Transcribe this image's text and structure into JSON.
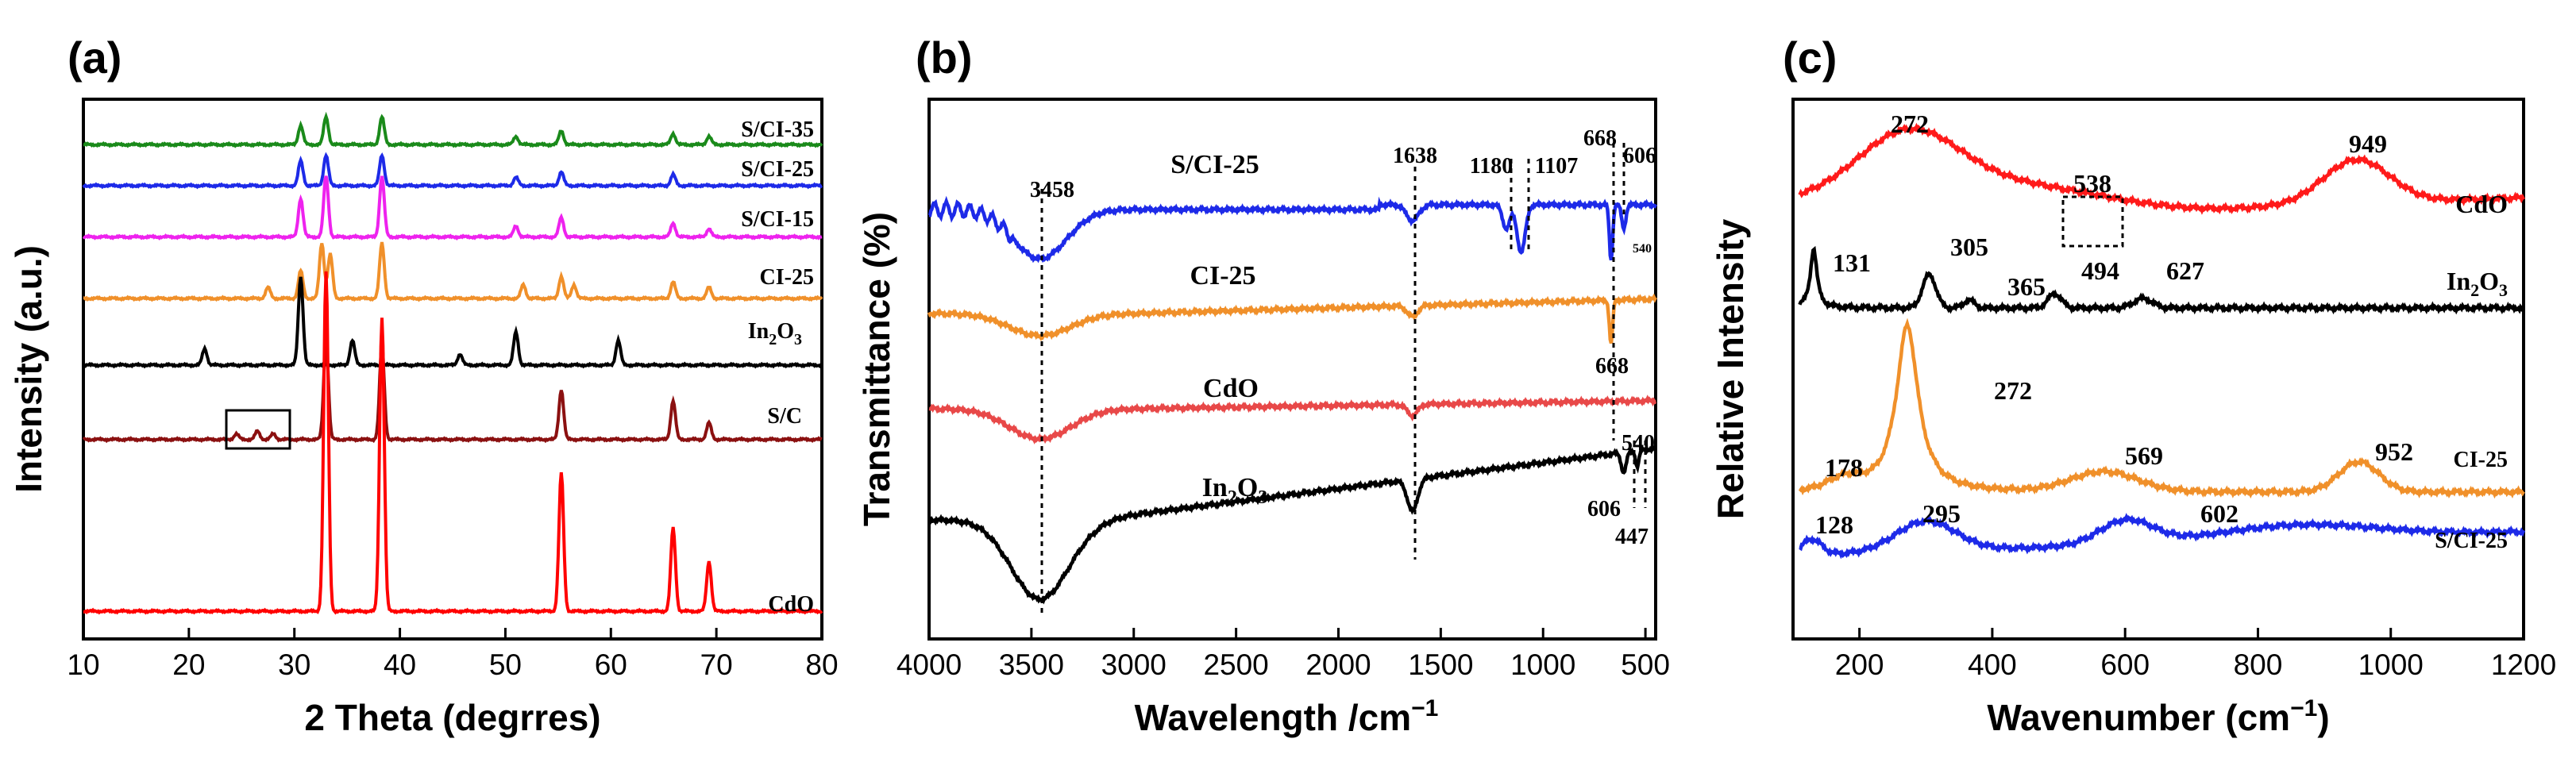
{
  "panels": [
    {
      "label": "(a)",
      "xlabel": "2 Theta (degrres)",
      "ylabel": "Intensity (a.u.)",
      "xlim": [
        10,
        80
      ],
      "xticks": [
        "10",
        "20",
        "30",
        "40",
        "50",
        "60",
        "70",
        "80"
      ]
    },
    {
      "label": "(b)",
      "xlabel_main": "Wavelength /cm",
      "xlabel_sup": "−1",
      "ylabel": "Transmittance (%)",
      "xlim": [
        4000,
        450
      ],
      "xticks": [
        "4000",
        "3500",
        "3000",
        "2500",
        "2000",
        "1500",
        "1000",
        "500"
      ]
    },
    {
      "label": "(c)",
      "xlabel_main": "Wavenumber (cm",
      "xlabel_sup": "−1",
      "xlabel_end": ")",
      "ylabel": "Relative Intensity",
      "xlim": [
        100,
        1200
      ],
      "xticks": [
        "200",
        "400",
        "600",
        "800",
        "1000",
        "1200"
      ]
    }
  ],
  "chart_data": [
    {
      "type": "line",
      "title": "(a)",
      "xlabel": "2 Theta (degrres)",
      "ylabel": "Intensity (a.u.)",
      "xlim": [
        10,
        80
      ],
      "series": [
        {
          "name": "S/CI-35",
          "color": "#1a8a1a",
          "offset": 0.93,
          "peaks": [
            [
              30.6,
              0.35
            ],
            [
              33.0,
              0.5
            ],
            [
              38.3,
              0.5
            ],
            [
              51.0,
              0.15
            ],
            [
              55.3,
              0.25
            ],
            [
              65.9,
              0.2
            ],
            [
              69.3,
              0.15
            ]
          ]
        },
        {
          "name": "S/CI-25",
          "color": "#1d2ae8",
          "offset": 0.85,
          "peaks": [
            [
              30.6,
              0.45
            ],
            [
              33.0,
              0.55
            ],
            [
              38.3,
              0.55
            ],
            [
              51.0,
              0.15
            ],
            [
              55.3,
              0.25
            ],
            [
              65.9,
              0.2
            ]
          ]
        },
        {
          "name": "S/CI-15",
          "color": "#ee22ee",
          "offset": 0.75,
          "peaks": [
            [
              30.6,
              0.7
            ],
            [
              33.0,
              1.1
            ],
            [
              38.3,
              1.1
            ],
            [
              51.0,
              0.2
            ],
            [
              55.3,
              0.35
            ],
            [
              65.9,
              0.25
            ],
            [
              69.3,
              0.15
            ]
          ]
        },
        {
          "name": "CI-25",
          "color": "#f0902a",
          "offset": 0.63,
          "peaks": [
            [
              27.5,
              0.2
            ],
            [
              30.6,
              0.5
            ],
            [
              32.6,
              1.0
            ],
            [
              33.4,
              0.8
            ],
            [
              38.3,
              1.0
            ],
            [
              51.7,
              0.25
            ],
            [
              55.3,
              0.4
            ],
            [
              56.5,
              0.25
            ],
            [
              65.9,
              0.3
            ],
            [
              69.3,
              0.2
            ]
          ]
        },
        {
          "name": "In2O3",
          "color": "#000000",
          "offset": 0.5,
          "peaks": [
            [
              21.5,
              0.3
            ],
            [
              30.6,
              1.6
            ],
            [
              35.5,
              0.45
            ],
            [
              45.7,
              0.2
            ],
            [
              51.0,
              0.6
            ],
            [
              60.7,
              0.45
            ]
          ]
        },
        {
          "name": "S/C",
          "color": "#8b1010",
          "offset": 0.355,
          "peaks": [
            [
              24.5,
              0.1
            ],
            [
              26.5,
              0.15
            ],
            [
              28.0,
              0.1
            ],
            [
              33.0,
              1.8
            ],
            [
              38.3,
              1.7
            ],
            [
              55.3,
              0.9
            ],
            [
              65.9,
              0.7
            ],
            [
              69.3,
              0.3
            ]
          ]
        },
        {
          "name": "CdO",
          "color": "#ff0000",
          "offset": 0.02,
          "peaks": [
            [
              33.0,
              6.1
            ],
            [
              38.3,
              5.3
            ],
            [
              55.3,
              2.5
            ],
            [
              65.9,
              1.5
            ],
            [
              69.3,
              0.9
            ]
          ]
        }
      ]
    },
    {
      "type": "line",
      "title": "(b)",
      "xlabel": "Wavelength /cm−1",
      "ylabel": "Transmittance (%)",
      "xlim": [
        4000,
        450
      ],
      "series": [
        {
          "name": "S/CI-25",
          "color": "#1d2ae8",
          "offset": 0.82
        },
        {
          "name": "CI-25",
          "color": "#f0902a",
          "offset": 0.6
        },
        {
          "name": "CdO",
          "color": "#e84848",
          "offset": 0.4
        },
        {
          "name": "In2O3",
          "color": "#000000",
          "offset": 0.2
        }
      ],
      "annotations": [
        "3458",
        "1638",
        "1180",
        "1107",
        "668",
        "606",
        "540",
        "668",
        "540",
        "606",
        "447"
      ]
    },
    {
      "type": "line",
      "title": "(c)",
      "xlabel": "Wavenumber (cm−1)",
      "ylabel": "Relative Intensity",
      "xlim": [
        100,
        1200
      ],
      "series": [
        {
          "name": "CdO",
          "color": "#ff1a1a",
          "offset": 0.82
        },
        {
          "name": "In2O3",
          "color": "#000000",
          "offset": 0.62
        },
        {
          "name": "CI-25",
          "color": "#f0902a",
          "offset": 0.24
        },
        {
          "name": "S/CI-25",
          "color": "#1d2ae8",
          "offset": 0.1
        }
      ],
      "annotations": [
        "272",
        "538",
        "949",
        "131",
        "305",
        "365",
        "494",
        "627",
        "272",
        "178",
        "569",
        "952",
        "128",
        "295",
        "602"
      ]
    }
  ],
  "a_labels": {
    "s35": "S/CI-35",
    "s25": "S/CI-25",
    "s15": "S/CI-15",
    "ci25": "CI-25",
    "in": "In",
    "in_sub": "2",
    "in_o": "O",
    "in_o_sub": "3",
    "sc": "S/C",
    "cdo": "CdO"
  },
  "b_labels": {
    "s25": "S/CI-25",
    "ci25": "CI-25",
    "cdo": "CdO",
    "in": "In",
    "in_sub": "2",
    "in_o": "O",
    "in_o_sub": "3",
    "p3458": "3458",
    "p1638": "1638",
    "p1180": "1180",
    "p1107": "1107",
    "p668a": "668",
    "p606a": "606",
    "p540a": "540",
    "p668b": "668",
    "p540b": "540",
    "p606b": "606",
    "p447": "447"
  },
  "c_labels": {
    "cdo": "CdO",
    "in": "In",
    "in_sub": "2",
    "in_o": "O",
    "in_o_sub": "3",
    "ci25": "CI-25",
    "s25": "S/CI-25",
    "p272a": "272",
    "p538": "538",
    "p949": "949",
    "p131": "131",
    "p305": "305",
    "p365": "365",
    "p494": "494",
    "p627": "627",
    "p272b": "272",
    "p178": "178",
    "p569": "569",
    "p952": "952",
    "p128": "128",
    "p295": "295",
    "p602": "602"
  }
}
